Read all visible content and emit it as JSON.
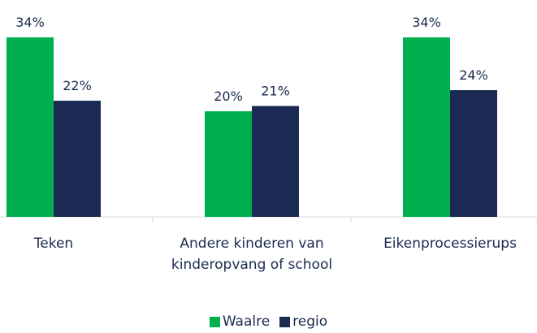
{
  "chart_data": {
    "type": "bar",
    "categories": [
      "Teken",
      "Andere kinderen van kinderopvang of school",
      "Eikenprocessierups"
    ],
    "series": [
      {
        "name": "Waalre",
        "color": "#00b050",
        "values": [
          34,
          20,
          34
        ],
        "value_labels": [
          "34%",
          "20%",
          "34%"
        ]
      },
      {
        "name": "regio",
        "color": "#1b2a52",
        "values": [
          22,
          21,
          24
        ],
        "value_labels": [
          "22%",
          "21%",
          "24%"
        ]
      }
    ],
    "legend": "bottom"
  }
}
